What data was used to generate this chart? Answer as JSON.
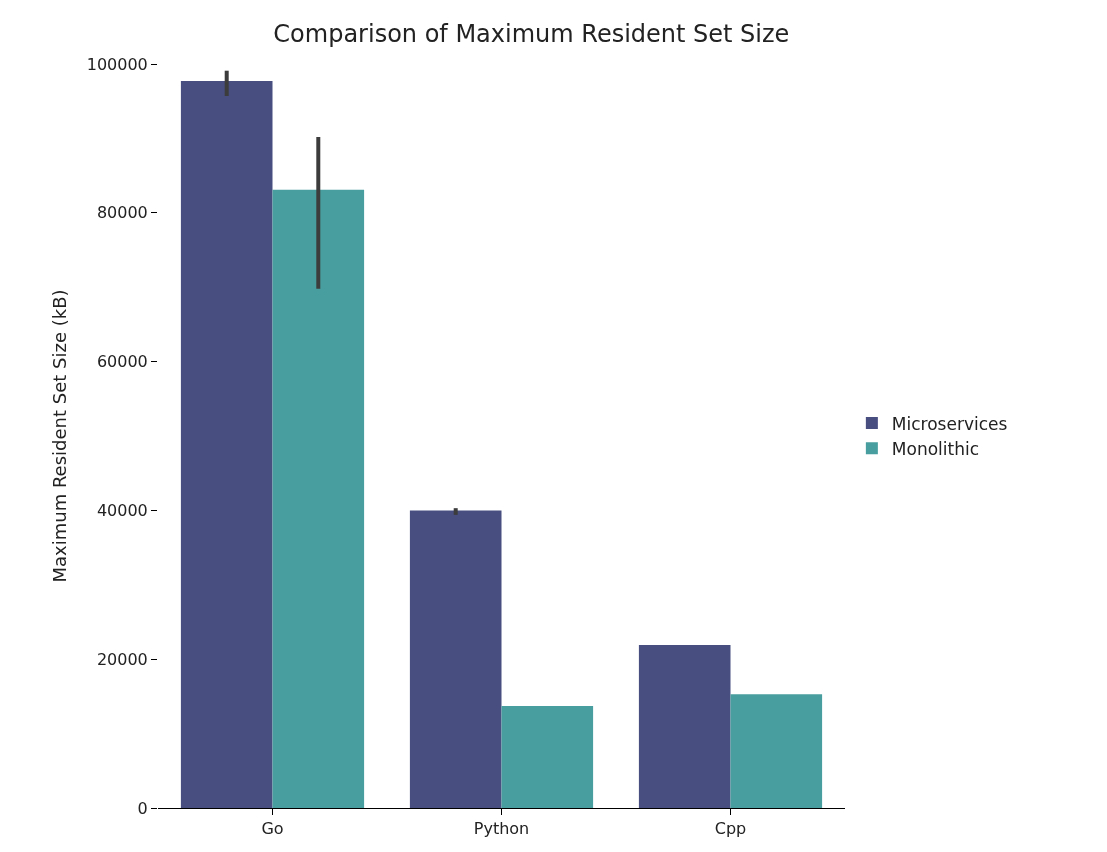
{
  "chart_data": {
    "type": "bar",
    "title": "Comparison of Maximum Resident Set Size",
    "ylabel": "Maximum Resident Set Size (kB)",
    "categories": [
      "Go",
      "Python",
      "Cpp"
    ],
    "series": [
      {
        "name": "Microservices",
        "color": "#484f80",
        "values": [
          97700,
          40000,
          21900
        ],
        "errors": [
          [
            95700,
            99100
          ],
          [
            39400,
            40300
          ],
          null
        ]
      },
      {
        "name": "Monolithic",
        "color": "#489e9e",
        "values": [
          83100,
          13700,
          15300
        ],
        "errors": [
          [
            69800,
            90200
          ],
          null,
          null
        ]
      }
    ],
    "ylim": [
      0,
      100000
    ],
    "yticks": [
      0,
      20000,
      40000,
      60000,
      80000,
      100000
    ],
    "legend": "right"
  }
}
